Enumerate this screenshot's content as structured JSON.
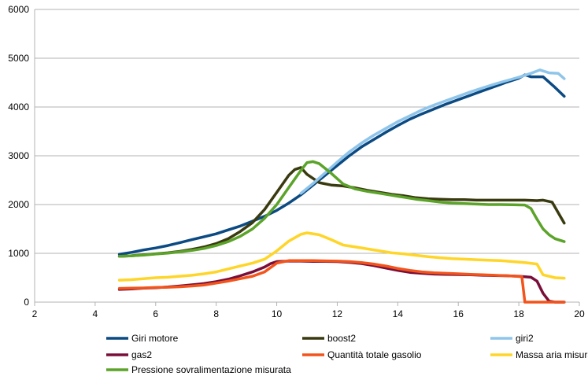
{
  "chart_data": {
    "type": "line",
    "title": "",
    "xlabel": "",
    "ylabel": "",
    "xlim": [
      2,
      20
    ],
    "ylim": [
      0,
      6000
    ],
    "x_ticks": [
      2,
      4,
      6,
      8,
      10,
      12,
      14,
      16,
      18,
      20
    ],
    "y_ticks": [
      0,
      1000,
      2000,
      3000,
      4000,
      5000,
      6000
    ],
    "grid": "horizontal",
    "legend_position": "bottom",
    "series": [
      {
        "name": "Giri motore",
        "color": "#0B4A82",
        "points": [
          [
            4.8,
            980
          ],
          [
            5.2,
            1020
          ],
          [
            5.6,
            1070
          ],
          [
            6.0,
            1110
          ],
          [
            6.4,
            1160
          ],
          [
            6.8,
            1220
          ],
          [
            7.2,
            1280
          ],
          [
            7.6,
            1340
          ],
          [
            8.0,
            1400
          ],
          [
            8.4,
            1480
          ],
          [
            8.8,
            1560
          ],
          [
            9.2,
            1660
          ],
          [
            9.6,
            1760
          ],
          [
            10.0,
            1880
          ],
          [
            10.4,
            2030
          ],
          [
            10.8,
            2200
          ],
          [
            11.2,
            2400
          ],
          [
            11.6,
            2600
          ],
          [
            12.0,
            2800
          ],
          [
            12.4,
            3000
          ],
          [
            12.8,
            3180
          ],
          [
            13.2,
            3330
          ],
          [
            13.6,
            3480
          ],
          [
            14.0,
            3620
          ],
          [
            14.4,
            3750
          ],
          [
            14.8,
            3860
          ],
          [
            15.2,
            3960
          ],
          [
            15.6,
            4060
          ],
          [
            16.0,
            4150
          ],
          [
            16.4,
            4240
          ],
          [
            16.8,
            4330
          ],
          [
            17.2,
            4420
          ],
          [
            17.6,
            4510
          ],
          [
            18.0,
            4590
          ],
          [
            18.2,
            4660
          ],
          [
            18.4,
            4620
          ],
          [
            18.8,
            4620
          ],
          [
            19.2,
            4400
          ],
          [
            19.5,
            4220
          ]
        ]
      },
      {
        "name": "boost2",
        "color": "#3A3A10",
        "points": [
          [
            4.8,
            940
          ],
          [
            5.2,
            950
          ],
          [
            5.6,
            970
          ],
          [
            6.0,
            990
          ],
          [
            6.4,
            1010
          ],
          [
            6.8,
            1040
          ],
          [
            7.2,
            1080
          ],
          [
            7.6,
            1130
          ],
          [
            8.0,
            1200
          ],
          [
            8.4,
            1300
          ],
          [
            8.8,
            1450
          ],
          [
            9.2,
            1630
          ],
          [
            9.6,
            1900
          ],
          [
            10.0,
            2250
          ],
          [
            10.4,
            2600
          ],
          [
            10.6,
            2720
          ],
          [
            10.8,
            2760
          ],
          [
            11.0,
            2620
          ],
          [
            11.4,
            2450
          ],
          [
            11.8,
            2400
          ],
          [
            12.2,
            2380
          ],
          [
            12.6,
            2340
          ],
          [
            13.0,
            2290
          ],
          [
            13.4,
            2250
          ],
          [
            13.8,
            2210
          ],
          [
            14.2,
            2180
          ],
          [
            14.6,
            2140
          ],
          [
            15.0,
            2120
          ],
          [
            15.4,
            2110
          ],
          [
            15.8,
            2100
          ],
          [
            16.2,
            2100
          ],
          [
            16.6,
            2090
          ],
          [
            17.0,
            2090
          ],
          [
            17.4,
            2090
          ],
          [
            17.8,
            2090
          ],
          [
            18.2,
            2090
          ],
          [
            18.6,
            2080
          ],
          [
            18.8,
            2090
          ],
          [
            19.1,
            2050
          ],
          [
            19.5,
            1620
          ]
        ]
      },
      {
        "name": "giri2",
        "color": "#8FC5EA",
        "points": [
          [
            10.8,
            2230
          ],
          [
            11.2,
            2430
          ],
          [
            11.6,
            2650
          ],
          [
            12.0,
            2870
          ],
          [
            12.4,
            3080
          ],
          [
            12.8,
            3260
          ],
          [
            13.2,
            3420
          ],
          [
            13.6,
            3560
          ],
          [
            14.0,
            3700
          ],
          [
            14.4,
            3820
          ],
          [
            14.8,
            3940
          ],
          [
            15.2,
            4040
          ],
          [
            15.6,
            4130
          ],
          [
            16.0,
            4220
          ],
          [
            16.4,
            4310
          ],
          [
            16.8,
            4390
          ],
          [
            17.2,
            4470
          ],
          [
            17.6,
            4540
          ],
          [
            18.0,
            4610
          ],
          [
            18.4,
            4690
          ],
          [
            18.7,
            4760
          ],
          [
            19.0,
            4700
          ],
          [
            19.3,
            4690
          ],
          [
            19.5,
            4580
          ]
        ]
      },
      {
        "name": "gas2",
        "color": "#7A0E3A",
        "points": [
          [
            4.8,
            260
          ],
          [
            5.2,
            270
          ],
          [
            5.6,
            285
          ],
          [
            6.0,
            295
          ],
          [
            6.4,
            310
          ],
          [
            6.8,
            330
          ],
          [
            7.2,
            355
          ],
          [
            7.6,
            380
          ],
          [
            8.0,
            420
          ],
          [
            8.4,
            470
          ],
          [
            8.8,
            540
          ],
          [
            9.2,
            620
          ],
          [
            9.6,
            720
          ],
          [
            9.8,
            790
          ],
          [
            10.0,
            830
          ],
          [
            10.4,
            840
          ],
          [
            10.8,
            840
          ],
          [
            11.2,
            835
          ],
          [
            11.6,
            835
          ],
          [
            12.0,
            830
          ],
          [
            12.4,
            815
          ],
          [
            12.8,
            790
          ],
          [
            13.2,
            750
          ],
          [
            13.6,
            700
          ],
          [
            14.0,
            650
          ],
          [
            14.4,
            610
          ],
          [
            14.8,
            590
          ],
          [
            15.2,
            575
          ],
          [
            15.6,
            570
          ],
          [
            16.0,
            565
          ],
          [
            16.4,
            560
          ],
          [
            16.8,
            550
          ],
          [
            17.2,
            545
          ],
          [
            17.6,
            540
          ],
          [
            18.0,
            530
          ],
          [
            18.4,
            510
          ],
          [
            18.6,
            430
          ],
          [
            18.8,
            180
          ],
          [
            19.0,
            20
          ],
          [
            19.2,
            0
          ],
          [
            19.5,
            0
          ]
        ]
      },
      {
        "name": "Quantità totale gasolio",
        "color": "#F2541B",
        "points": [
          [
            4.8,
            280
          ],
          [
            5.2,
            285
          ],
          [
            5.6,
            290
          ],
          [
            6.0,
            300
          ],
          [
            6.4,
            305
          ],
          [
            6.8,
            315
          ],
          [
            7.2,
            330
          ],
          [
            7.6,
            350
          ],
          [
            8.0,
            390
          ],
          [
            8.4,
            430
          ],
          [
            8.8,
            480
          ],
          [
            9.2,
            530
          ],
          [
            9.6,
            620
          ],
          [
            10.0,
            800
          ],
          [
            10.4,
            850
          ],
          [
            10.8,
            850
          ],
          [
            11.2,
            850
          ],
          [
            11.6,
            845
          ],
          [
            12.0,
            840
          ],
          [
            12.4,
            830
          ],
          [
            12.8,
            810
          ],
          [
            13.2,
            780
          ],
          [
            13.6,
            740
          ],
          [
            14.0,
            690
          ],
          [
            14.4,
            650
          ],
          [
            14.8,
            620
          ],
          [
            15.2,
            600
          ],
          [
            15.6,
            590
          ],
          [
            16.0,
            580
          ],
          [
            16.4,
            570
          ],
          [
            16.8,
            560
          ],
          [
            17.2,
            550
          ],
          [
            17.6,
            540
          ],
          [
            17.9,
            530
          ],
          [
            18.1,
            520
          ],
          [
            18.2,
            0
          ],
          [
            18.6,
            0
          ],
          [
            19.0,
            0
          ],
          [
            19.5,
            0
          ]
        ]
      },
      {
        "name": "Massa aria misurata",
        "color": "#FFD528",
        "points": [
          [
            4.8,
            450
          ],
          [
            5.2,
            460
          ],
          [
            5.6,
            480
          ],
          [
            6.0,
            500
          ],
          [
            6.4,
            510
          ],
          [
            6.8,
            530
          ],
          [
            7.2,
            550
          ],
          [
            7.6,
            580
          ],
          [
            8.0,
            620
          ],
          [
            8.4,
            680
          ],
          [
            8.8,
            740
          ],
          [
            9.2,
            800
          ],
          [
            9.6,
            880
          ],
          [
            10.0,
            1050
          ],
          [
            10.4,
            1250
          ],
          [
            10.8,
            1390
          ],
          [
            11.0,
            1420
          ],
          [
            11.4,
            1380
          ],
          [
            11.8,
            1280
          ],
          [
            12.2,
            1170
          ],
          [
            12.6,
            1130
          ],
          [
            13.0,
            1090
          ],
          [
            13.4,
            1050
          ],
          [
            13.8,
            1010
          ],
          [
            14.2,
            990
          ],
          [
            14.6,
            960
          ],
          [
            15.0,
            930
          ],
          [
            15.4,
            910
          ],
          [
            15.8,
            890
          ],
          [
            16.2,
            880
          ],
          [
            16.6,
            870
          ],
          [
            17.0,
            860
          ],
          [
            17.4,
            850
          ],
          [
            17.8,
            830
          ],
          [
            18.2,
            810
          ],
          [
            18.6,
            780
          ],
          [
            18.8,
            560
          ],
          [
            19.2,
            500
          ],
          [
            19.5,
            490
          ]
        ]
      },
      {
        "name": "Pressione sovralimentazione misurata",
        "color": "#5BA329",
        "points": [
          [
            4.8,
            940
          ],
          [
            5.2,
            950
          ],
          [
            5.6,
            965
          ],
          [
            6.0,
            985
          ],
          [
            6.4,
            1005
          ],
          [
            6.8,
            1030
          ],
          [
            7.2,
            1060
          ],
          [
            7.6,
            1100
          ],
          [
            8.0,
            1160
          ],
          [
            8.4,
            1240
          ],
          [
            8.8,
            1350
          ],
          [
            9.2,
            1500
          ],
          [
            9.6,
            1720
          ],
          [
            10.0,
            2000
          ],
          [
            10.4,
            2350
          ],
          [
            10.8,
            2700
          ],
          [
            11.0,
            2860
          ],
          [
            11.2,
            2880
          ],
          [
            11.4,
            2840
          ],
          [
            11.8,
            2640
          ],
          [
            12.2,
            2420
          ],
          [
            12.6,
            2320
          ],
          [
            13.0,
            2270
          ],
          [
            13.4,
            2230
          ],
          [
            13.8,
            2190
          ],
          [
            14.2,
            2150
          ],
          [
            14.6,
            2110
          ],
          [
            15.0,
            2080
          ],
          [
            15.4,
            2050
          ],
          [
            15.8,
            2030
          ],
          [
            16.2,
            2020
          ],
          [
            16.6,
            2010
          ],
          [
            17.0,
            2000
          ],
          [
            17.4,
            2000
          ],
          [
            17.8,
            1995
          ],
          [
            18.2,
            1990
          ],
          [
            18.4,
            1920
          ],
          [
            18.6,
            1700
          ],
          [
            18.8,
            1500
          ],
          [
            19.0,
            1380
          ],
          [
            19.2,
            1300
          ],
          [
            19.5,
            1240
          ]
        ]
      }
    ]
  }
}
